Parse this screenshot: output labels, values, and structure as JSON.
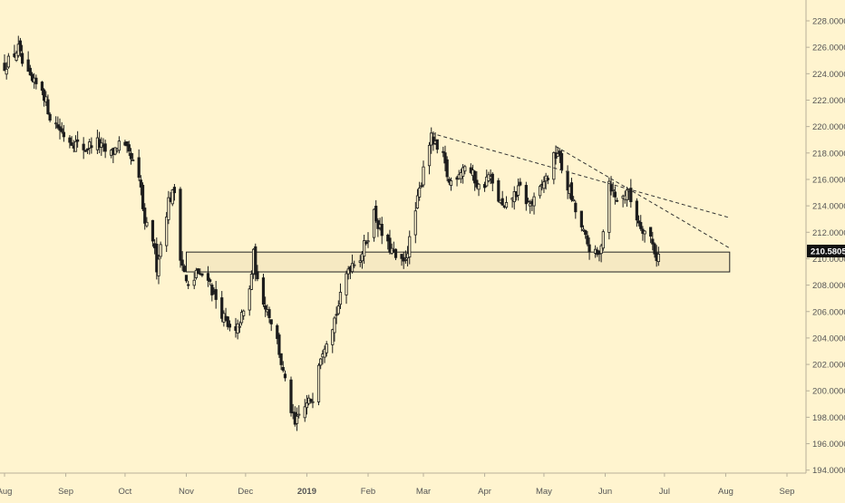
{
  "colors": {
    "background": "#fff4cf",
    "candle": "#1c1c1c",
    "axis_text": "#555555",
    "axis_line": "#b8b09a",
    "zone_fill": "#f6e9c2",
    "zone_border": "#222222",
    "price_tag_bg": "#111111",
    "price_tag_text": "#ffffff",
    "trendline": "#333333"
  },
  "price_tag": "210.5805",
  "chart_data": {
    "type": "candlestick",
    "title": "",
    "xlabel": "",
    "ylabel": "",
    "ylim": [
      193.0,
      229.5
    ],
    "y_ticks": [
      194,
      196,
      198,
      200,
      202,
      204,
      206,
      208,
      210,
      212,
      214,
      216,
      218,
      220,
      222,
      224,
      226,
      228
    ],
    "y_tick_labels": [
      "194.0000",
      "196.0000",
      "198.0000",
      "200.0000",
      "202.0000",
      "204.0000",
      "206.0000",
      "208.0000",
      "210.0000",
      "212.0000",
      "214.0000",
      "216.0000",
      "218.0000",
      "220.0000",
      "222.0000",
      "224.0000",
      "226.0000",
      "228.0000"
    ],
    "x_ticks": [
      {
        "label": "Aug",
        "date": "2018-08-01",
        "bold": false
      },
      {
        "label": "Sep",
        "date": "2018-09-01",
        "bold": false
      },
      {
        "label": "Oct",
        "date": "2018-10-01",
        "bold": false
      },
      {
        "label": "Nov",
        "date": "2018-11-01",
        "bold": false
      },
      {
        "label": "Dec",
        "date": "2018-12-01",
        "bold": false
      },
      {
        "label": "2019",
        "date": "2019-01-01",
        "bold": true
      },
      {
        "label": "Feb",
        "date": "2019-02-01",
        "bold": false
      },
      {
        "label": "Mar",
        "date": "2019-03-01",
        "bold": false
      },
      {
        "label": "Apr",
        "date": "2019-04-01",
        "bold": false
      },
      {
        "label": "May",
        "date": "2019-05-01",
        "bold": false
      },
      {
        "label": "Jun",
        "date": "2019-06-01",
        "bold": false
      },
      {
        "label": "Jul",
        "date": "2019-07-01",
        "bold": false
      },
      {
        "label": "Aug",
        "date": "2019-08-01",
        "bold": false
      },
      {
        "label": "Sep",
        "date": "2019-09-01",
        "bold": false
      }
    ],
    "close_path": [
      [
        "2018-08-01",
        224.6
      ],
      [
        "2018-08-05",
        225.3
      ],
      [
        "2018-08-08",
        225.9
      ],
      [
        "2018-08-11",
        224.2
      ],
      [
        "2018-08-15",
        223.3
      ],
      [
        "2018-08-20",
        222.9
      ],
      [
        "2018-08-24",
        220.8
      ],
      [
        "2018-08-28",
        220.0
      ],
      [
        "2018-09-01",
        219.2
      ],
      [
        "2018-09-06",
        218.7
      ],
      [
        "2018-09-11",
        218.3
      ],
      [
        "2018-09-16",
        219.0
      ],
      [
        "2018-09-20",
        218.2
      ],
      [
        "2018-09-24",
        217.9
      ],
      [
        "2018-09-28",
        218.7
      ],
      [
        "2018-10-02",
        218.1
      ],
      [
        "2018-10-06",
        216.9
      ],
      [
        "2018-10-09",
        215.3
      ],
      [
        "2018-10-11",
        212.3
      ],
      [
        "2018-10-14",
        212.6
      ],
      [
        "2018-10-17",
        209.4
      ],
      [
        "2018-10-20",
        211.9
      ],
      [
        "2018-10-23",
        214.4
      ],
      [
        "2018-10-26",
        215.1
      ],
      [
        "2018-10-29",
        210.3
      ],
      [
        "2018-11-01",
        208.2
      ],
      [
        "2018-11-04",
        207.1
      ],
      [
        "2018-11-06",
        209.2
      ],
      [
        "2018-11-08",
        208.5
      ],
      [
        "2018-11-11",
        209.3
      ],
      [
        "2018-11-14",
        207.6
      ],
      [
        "2018-11-18",
        206.3
      ],
      [
        "2018-11-22",
        204.7
      ],
      [
        "2018-11-26",
        204.3
      ],
      [
        "2018-11-29",
        205.6
      ],
      [
        "2018-12-01",
        206.2
      ],
      [
        "2018-12-03",
        207.6
      ],
      [
        "2018-12-05",
        210.3
      ],
      [
        "2018-12-07",
        208.1
      ],
      [
        "2018-12-10",
        206.9
      ],
      [
        "2018-12-13",
        205.8
      ],
      [
        "2018-12-17",
        203.8
      ],
      [
        "2018-12-20",
        201.3
      ],
      [
        "2018-12-23",
        199.2
      ],
      [
        "2018-12-26",
        197.3
      ],
      [
        "2018-12-29",
        198.5
      ],
      [
        "2019-01-01",
        198.9
      ],
      [
        "2019-01-04",
        199.6
      ],
      [
        "2019-01-07",
        202.3
      ],
      [
        "2019-01-10",
        203.6
      ],
      [
        "2019-01-13",
        204.6
      ],
      [
        "2019-01-16",
        205.9
      ],
      [
        "2019-01-19",
        207.6
      ],
      [
        "2019-01-22",
        209.3
      ],
      [
        "2019-01-25",
        209.9
      ],
      [
        "2019-01-28",
        210.1
      ],
      [
        "2019-02-01",
        211.8
      ],
      [
        "2019-02-04",
        213.5
      ],
      [
        "2019-02-07",
        212.2
      ],
      [
        "2019-02-10",
        211.1
      ],
      [
        "2019-02-13",
        210.6
      ],
      [
        "2019-02-16",
        209.7
      ],
      [
        "2019-02-19",
        209.6
      ],
      [
        "2019-02-22",
        211.3
      ],
      [
        "2019-02-25",
        213.6
      ],
      [
        "2019-02-28",
        215.9
      ],
      [
        "2019-03-02",
        218.3
      ],
      [
        "2019-03-05",
        219.1
      ],
      [
        "2019-03-08",
        218.2
      ],
      [
        "2019-03-11",
        217.6
      ],
      [
        "2019-03-14",
        215.7
      ],
      [
        "2019-03-18",
        216.4
      ],
      [
        "2019-03-22",
        217.1
      ],
      [
        "2019-03-26",
        216.3
      ],
      [
        "2019-03-30",
        215.1
      ],
      [
        "2019-04-03",
        216.3
      ],
      [
        "2019-04-07",
        214.8
      ],
      [
        "2019-04-11",
        213.6
      ],
      [
        "2019-04-15",
        214.7
      ],
      [
        "2019-04-19",
        215.3
      ],
      [
        "2019-04-23",
        214.1
      ],
      [
        "2019-04-27",
        214.4
      ],
      [
        "2019-05-01",
        215.9
      ],
      [
        "2019-05-04",
        216.4
      ],
      [
        "2019-05-06",
        217.6
      ],
      [
        "2019-05-08",
        218.1
      ],
      [
        "2019-05-11",
        216.2
      ],
      [
        "2019-05-14",
        215.1
      ],
      [
        "2019-05-17",
        213.6
      ],
      [
        "2019-05-20",
        212.3
      ],
      [
        "2019-05-23",
        211.1
      ],
      [
        "2019-05-26",
        210.3
      ],
      [
        "2019-05-29",
        210.2
      ],
      [
        "2019-06-01",
        213.4
      ],
      [
        "2019-06-03",
        215.9
      ],
      [
        "2019-06-06",
        214.6
      ],
      [
        "2019-06-09",
        214.3
      ],
      [
        "2019-06-12",
        215.3
      ],
      [
        "2019-06-15",
        213.9
      ],
      [
        "2019-06-18",
        212.8
      ],
      [
        "2019-06-21",
        212.1
      ],
      [
        "2019-06-24",
        211.6
      ],
      [
        "2019-06-27",
        210.1
      ],
      [
        "2019-06-30",
        210.6
      ]
    ],
    "annotations": {
      "support_zone": {
        "start": "2018-11-01",
        "end": "2019-08-03",
        "low": 209.0,
        "high": 210.5
      },
      "trendlines": [
        {
          "start": [
            "2019-03-05",
            219.5
          ],
          "end": [
            "2019-08-03",
            213.1
          ]
        },
        {
          "start": [
            "2019-05-07",
            218.5
          ],
          "end": [
            "2019-08-03",
            210.8
          ]
        }
      ]
    }
  }
}
